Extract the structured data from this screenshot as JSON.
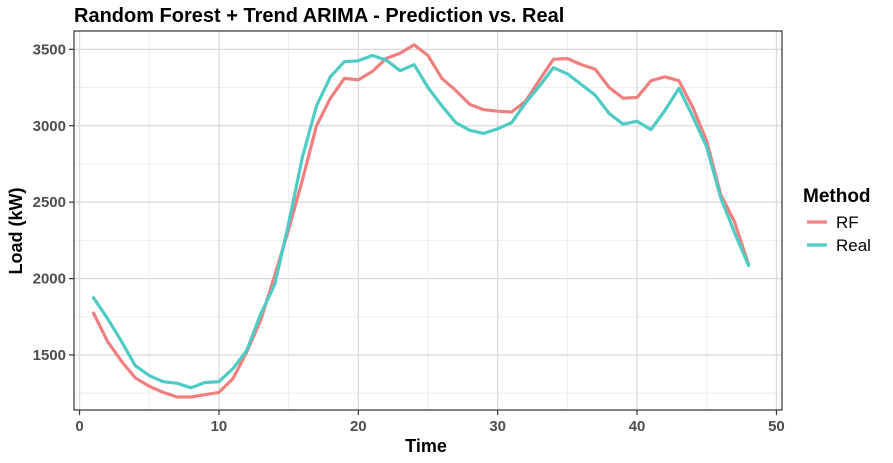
{
  "chart_data": {
    "type": "line",
    "title": "Random Forest + Trend ARIMA - Prediction vs. Real",
    "xlabel": "Time",
    "ylabel": "Load (kW)",
    "xlim": [
      -0.4,
      50.4
    ],
    "ylim": [
      1140,
      3620
    ],
    "x_ticks": [
      0,
      10,
      20,
      30,
      40,
      50
    ],
    "x_tick_labels": [
      "0",
      "10",
      "20",
      "30",
      "40",
      "50"
    ],
    "y_ticks": [
      1500,
      2000,
      2500,
      3000,
      3500
    ],
    "y_tick_labels": [
      "1500",
      "2000",
      "2500",
      "3000",
      "3500"
    ],
    "grid": true,
    "legend": {
      "title": "Method",
      "position": "right"
    },
    "x": [
      1,
      2,
      3,
      4,
      5,
      6,
      7,
      8,
      9,
      10,
      11,
      12,
      13,
      14,
      15,
      16,
      17,
      18,
      19,
      20,
      21,
      22,
      23,
      24,
      25,
      26,
      27,
      28,
      29,
      30,
      31,
      32,
      33,
      34,
      35,
      36,
      37,
      38,
      39,
      40,
      41,
      42,
      43,
      44,
      45,
      46,
      47,
      48
    ],
    "series": [
      {
        "name": "RF",
        "color": "#f08080",
        "values": [
          1775,
          1590,
          1460,
          1350,
          1295,
          1255,
          1225,
          1225,
          1240,
          1255,
          1345,
          1520,
          1730,
          2020,
          2320,
          2650,
          3000,
          3180,
          3310,
          3300,
          3355,
          3440,
          3475,
          3530,
          3460,
          3310,
          3230,
          3140,
          3105,
          3095,
          3090,
          3160,
          3300,
          3435,
          3440,
          3400,
          3370,
          3250,
          3180,
          3185,
          3295,
          3320,
          3295,
          3120,
          2900,
          2550,
          2370,
          2090
        ]
      },
      {
        "name": "Real",
        "color": "#4ecbc4",
        "values": [
          1875,
          1740,
          1590,
          1430,
          1365,
          1325,
          1315,
          1285,
          1320,
          1325,
          1410,
          1530,
          1770,
          1960,
          2360,
          2800,
          3130,
          3320,
          3420,
          3425,
          3460,
          3430,
          3360,
          3400,
          3250,
          3130,
          3020,
          2970,
          2950,
          2980,
          3020,
          3150,
          3260,
          3380,
          3340,
          3270,
          3200,
          3080,
          3010,
          3030,
          2975,
          3100,
          3245,
          3060,
          2860,
          2530,
          2300,
          2085
        ]
      }
    ]
  }
}
